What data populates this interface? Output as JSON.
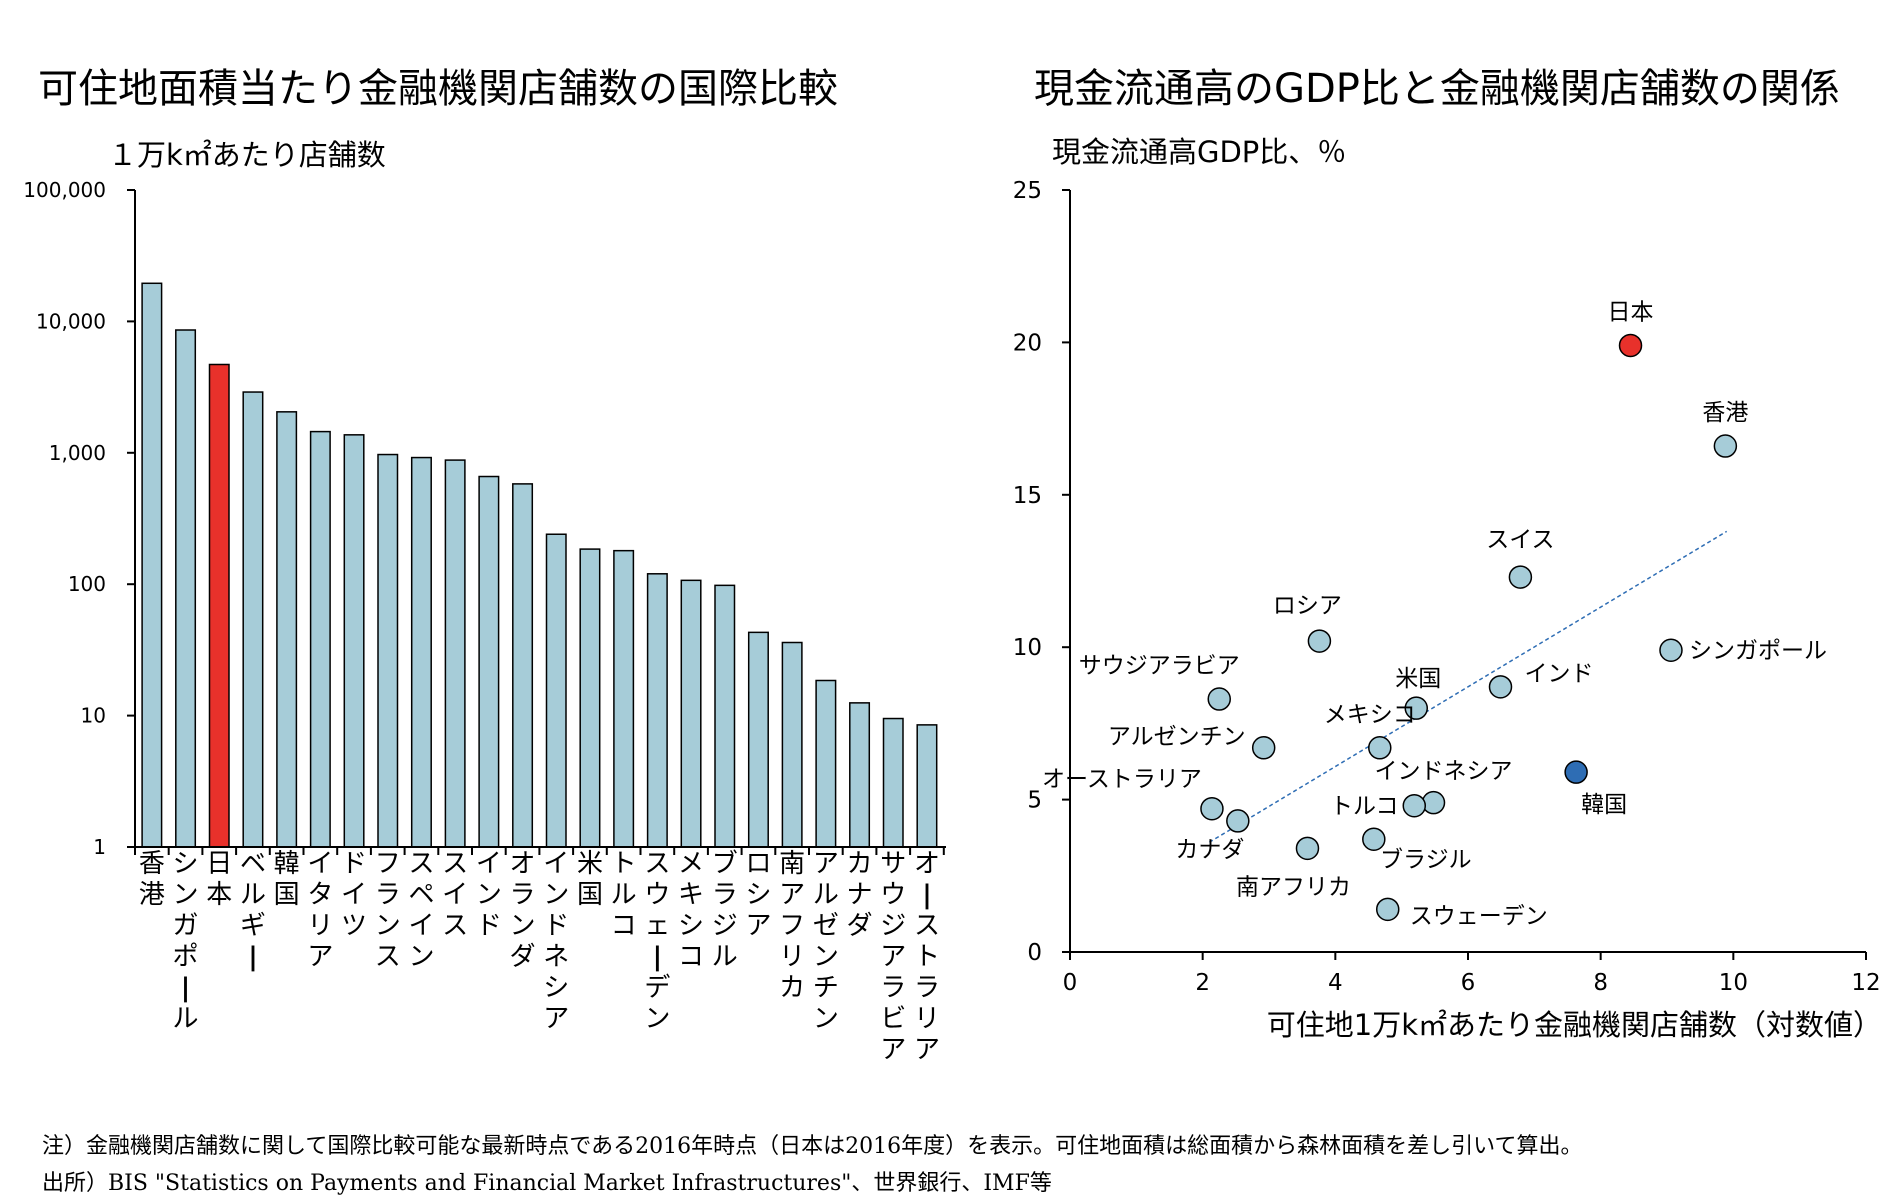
{
  "chart_data": [
    {
      "type": "bar",
      "title": "可住地面積当たり金融機関店舗数の国際比較",
      "ylabel": "１万k㎡あたり店舗数",
      "yscale": "log",
      "ylim": [
        1,
        100000
      ],
      "yticks": [
        1,
        10,
        100,
        1000,
        10000,
        100000
      ],
      "ytick_labels": [
        "1",
        "10",
        "100",
        "1,000",
        "10,000",
        "100,000"
      ],
      "categories": [
        "香港",
        "シンガポール",
        "日本",
        "ベルギー",
        "韓国",
        "イタリア",
        "ドイツ",
        "フランス",
        "スペイン",
        "スイス",
        "インド",
        "オランダ",
        "インドネシア",
        "米国",
        "トルコ",
        "スウェーデン",
        "メキシコ",
        "ブラジル",
        "ロシア",
        "南アフリカ",
        "アルゼンチン",
        "カナダ",
        "サウジアラビア",
        "オーストラリア"
      ],
      "values": [
        19500,
        8600,
        4700,
        2900,
        2050,
        1450,
        1370,
        970,
        920,
        880,
        660,
        580,
        240,
        185,
        180,
        120,
        107,
        98,
        43,
        36,
        18.5,
        12.5,
        9.5,
        8.5
      ],
      "highlight_index": 2,
      "bar_color": "#a6ccd8",
      "highlight_color": "#e8312b",
      "grid": false
    },
    {
      "type": "scatter",
      "title": "現金流通高のGDP比と金融機関店舗数の関係",
      "ylabel": "現金流通高GDP比、％",
      "xlabel": "可住地1万k㎡あたり金融機関店舗数（対数値）",
      "xlim": [
        0,
        12
      ],
      "ylim": [
        0,
        25
      ],
      "xticks": [
        0,
        2,
        4,
        6,
        8,
        10,
        12
      ],
      "yticks": [
        0,
        5,
        10,
        15,
        20,
        25
      ],
      "grid": false,
      "points": [
        {
          "label": "日本",
          "x": 8.45,
          "y": 19.9,
          "color": "#e8312b"
        },
        {
          "label": "香港",
          "x": 9.88,
          "y": 16.6,
          "color": "#a6ccd8"
        },
        {
          "label": "スイス",
          "x": 6.79,
          "y": 12.3,
          "color": "#a6ccd8"
        },
        {
          "label": "シンガポール",
          "x": 9.06,
          "y": 9.9,
          "color": "#a6ccd8"
        },
        {
          "label": "ロシア",
          "x": 3.76,
          "y": 10.2,
          "color": "#a6ccd8"
        },
        {
          "label": "インド",
          "x": 6.49,
          "y": 8.7,
          "color": "#a6ccd8"
        },
        {
          "label": "米国",
          "x": 5.22,
          "y": 8.0,
          "color": "#a6ccd8"
        },
        {
          "label": "サウジアラビア",
          "x": 2.25,
          "y": 8.3,
          "color": "#a6ccd8"
        },
        {
          "label": "メキシコ",
          "x": 4.67,
          "y": 6.7,
          "color": "#a6ccd8"
        },
        {
          "label": "アルゼンチン",
          "x": 2.92,
          "y": 6.7,
          "color": "#a6ccd8"
        },
        {
          "label": "韓国",
          "x": 7.63,
          "y": 5.9,
          "color": "#2e6db4"
        },
        {
          "label": "インドネシア",
          "x": 5.48,
          "y": 4.9,
          "color": "#a6ccd8"
        },
        {
          "label": "トルコ",
          "x": 5.19,
          "y": 4.8,
          "color": "#a6ccd8"
        },
        {
          "label": "オーストラリア",
          "x": 2.14,
          "y": 4.7,
          "color": "#a6ccd8"
        },
        {
          "label": "カナダ",
          "x": 2.53,
          "y": 4.3,
          "color": "#a6ccd8"
        },
        {
          "label": "南アフリカ",
          "x": 3.58,
          "y": 3.4,
          "color": "#a6ccd8"
        },
        {
          "label": "ブラジル",
          "x": 4.58,
          "y": 3.7,
          "color": "#a6ccd8"
        },
        {
          "label": "スウェーデン",
          "x": 4.79,
          "y": 1.4,
          "color": "#a6ccd8"
        }
      ],
      "trendline": {
        "x": [
          2.1,
          9.9
        ],
        "y": [
          3.6,
          13.8
        ],
        "color": "#2e6db4",
        "style": "dashed"
      }
    }
  ],
  "notes": {
    "line1": "注）金融機関店舗数に関して国際比較可能な最新時点である2016年時点（日本は2016年度）を表示。可住地面積は総面積から森林面積を差し引いて算出。",
    "line2": "出所）BIS \"Statistics on Payments and Financial Market Infrastructures\"、世界銀行、IMF等"
  }
}
